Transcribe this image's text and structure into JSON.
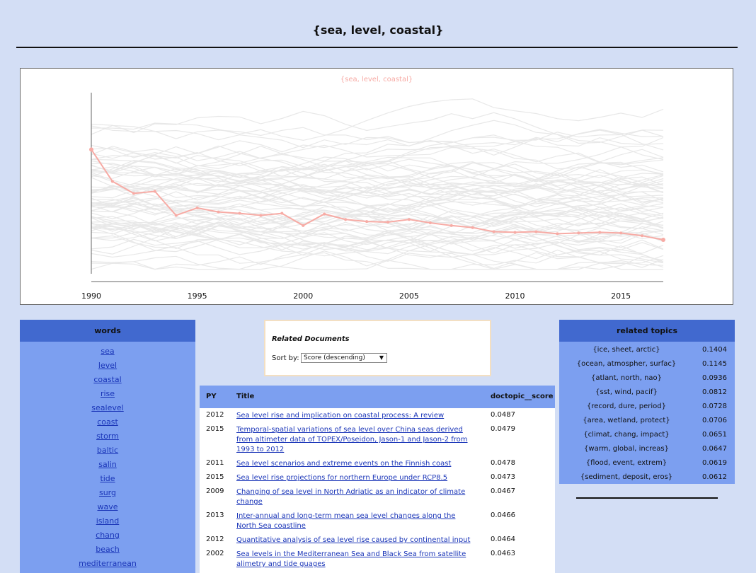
{
  "page": {
    "title": "{sea, level, coastal}"
  },
  "chart_data": {
    "type": "line",
    "title": "{sea, level, coastal}",
    "xlabel": "",
    "ylabel": "",
    "xlim": [
      1990,
      2017
    ],
    "ylim": [
      0,
      0.08
    ],
    "x_ticks": [
      "1990",
      "1995",
      "2000",
      "2005",
      "2010",
      "2015"
    ],
    "highlight_color": "#f7aba5",
    "background_color": "#e8e8e8",
    "grid": false,
    "series": [
      {
        "x": [
          1990,
          1991,
          1992,
          1993,
          1994,
          1995,
          1996,
          1997,
          1998,
          1999,
          2000,
          2001,
          2002,
          2003,
          2004,
          2005,
          2006,
          2007,
          2008,
          2009,
          2010,
          2011,
          2012,
          2013,
          2014,
          2015,
          2016,
          2017
        ],
        "values": [
          0.0549,
          0.0408,
          0.0355,
          0.0364,
          0.0258,
          0.0291,
          0.0273,
          0.0267,
          0.0258,
          0.0267,
          0.0213,
          0.0264,
          0.024,
          0.0231,
          0.0228,
          0.024,
          0.0225,
          0.0213,
          0.0204,
          0.0186,
          0.0183,
          0.0186,
          0.0177,
          0.018,
          0.0183,
          0.018,
          0.0168,
          0.015
        ]
      }
    ]
  },
  "words": {
    "header": "words",
    "items": [
      "sea",
      "level",
      "coastal",
      "rise",
      "sealevel",
      "coast",
      "storm",
      "baltic",
      "salin",
      "tide",
      "surg",
      "wave",
      "island",
      "chang",
      "beach",
      "mediterranean"
    ]
  },
  "related": {
    "title": "Related Documents",
    "sort_label": "Sort by:",
    "sort_value": "Score (descending)"
  },
  "docs": {
    "headers": {
      "py": "PY",
      "title": "Title",
      "score": "doctopic__score"
    },
    "rows": [
      {
        "py": "2012",
        "title": "Sea level rise and implication on coastal process: A review",
        "score": "0.0487"
      },
      {
        "py": "2015",
        "title": "Temporal-spatial variations of sea level over China seas derived from altimeter data of TOPEX/Poseidon, Jason-1 and Jason-2 from 1993 to 2012",
        "score": "0.0479"
      },
      {
        "py": "2011",
        "title": "Sea level scenarios and extreme events on the Finnish coast",
        "score": "0.0478"
      },
      {
        "py": "2015",
        "title": "Sea level rise projections for northern Europe under RCP8.5",
        "score": "0.0473"
      },
      {
        "py": "2009",
        "title": "Changing of sea level in North Adriatic as an indicator of climate change",
        "score": "0.0467"
      },
      {
        "py": "2013",
        "title": "Inter-annual and long-term mean sea level changes along the North Sea coastline",
        "score": "0.0466"
      },
      {
        "py": "2012",
        "title": "Quantitative analysis of sea level rise caused by continental input",
        "score": "0.0464"
      },
      {
        "py": "2002",
        "title": "Sea levels in the Mediterranean Sea and Black Sea from satellite alimetry and tide guages",
        "score": "0.0463"
      }
    ]
  },
  "topics": {
    "header": "related topics",
    "items": [
      {
        "name": "{ice, sheet, arctic}",
        "score": "0.1404"
      },
      {
        "name": "{ocean, atmospher, surfac}",
        "score": "0.1145"
      },
      {
        "name": "{atlant, north, nao}",
        "score": "0.0936"
      },
      {
        "name": "{sst, wind, pacif}",
        "score": "0.0812"
      },
      {
        "name": "{record, dure, period}",
        "score": "0.0728"
      },
      {
        "name": "{area, wetland, protect}",
        "score": "0.0706"
      },
      {
        "name": "{climat, chang, impact}",
        "score": "0.0651"
      },
      {
        "name": "{warm, global, increas}",
        "score": "0.0647"
      },
      {
        "name": "{flood, event, extrem}",
        "score": "0.0619"
      },
      {
        "name": "{sediment, deposit, eros}",
        "score": "0.0612"
      }
    ]
  }
}
